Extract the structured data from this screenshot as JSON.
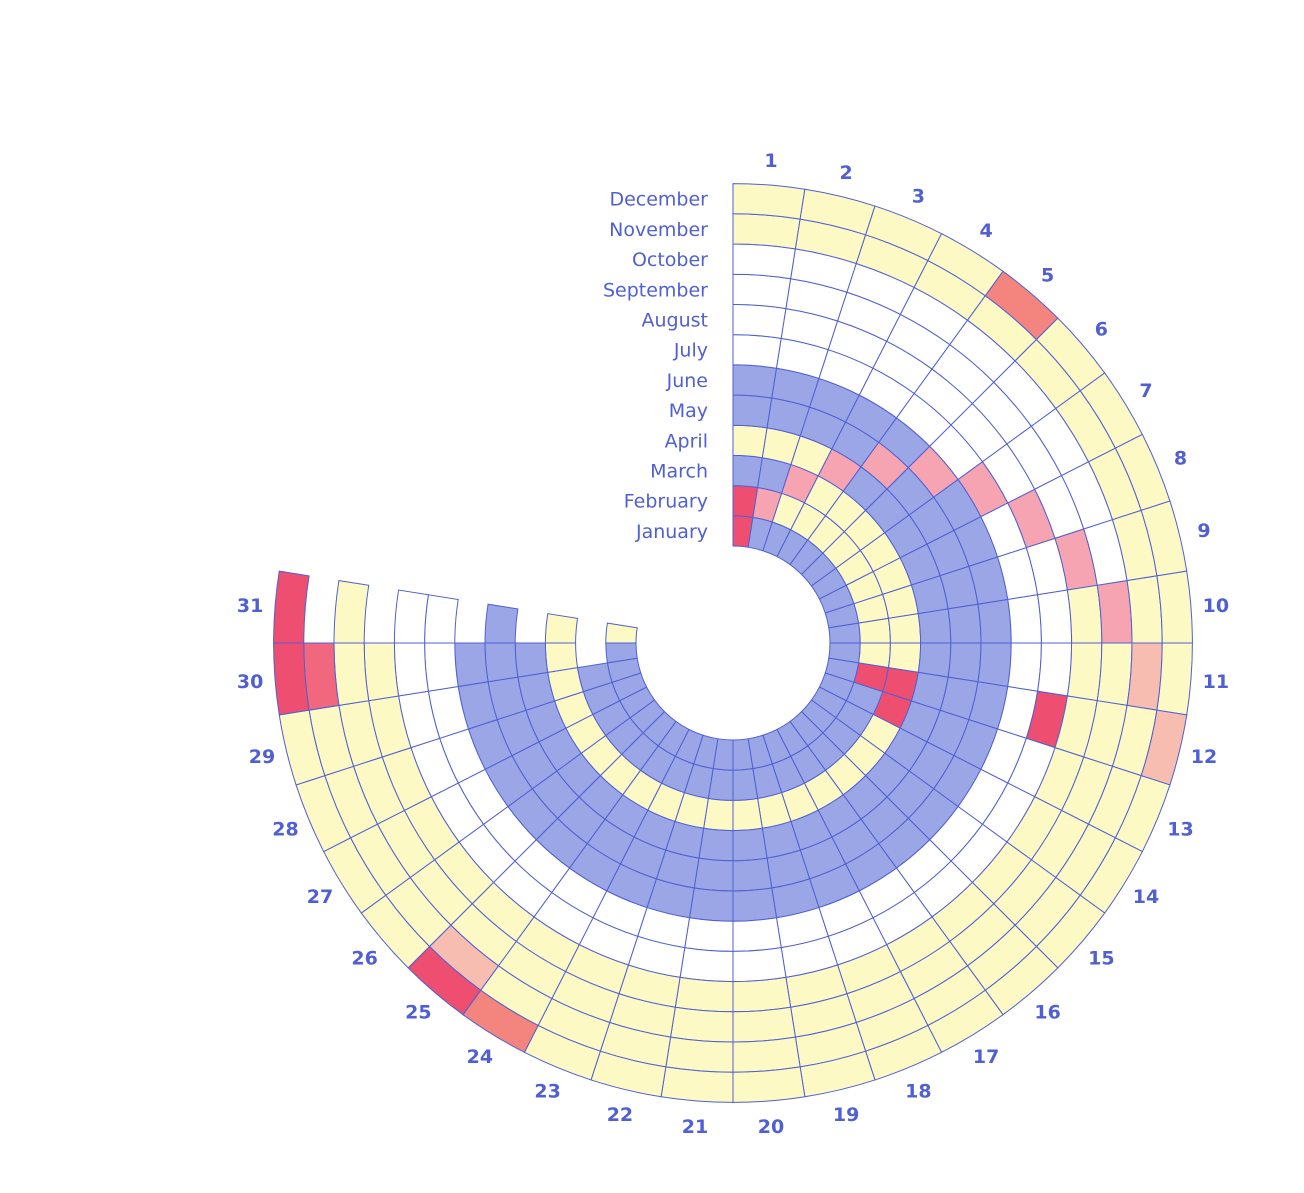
{
  "chart_data": {
    "type": "radial-calendar-heatmap",
    "months": [
      "January",
      "February",
      "March",
      "April",
      "May",
      "June",
      "July",
      "August",
      "September",
      "October",
      "November",
      "December"
    ],
    "days": [
      "1",
      "2",
      "3",
      "4",
      "5",
      "6",
      "7",
      "8",
      "9",
      "10",
      "11",
      "12",
      "13",
      "14",
      "15",
      "16",
      "17",
      "18",
      "19",
      "20",
      "21",
      "22",
      "23",
      "24",
      "25",
      "26",
      "27",
      "28",
      "29",
      "30",
      "31"
    ],
    "days_in_month": [
      31,
      29,
      31,
      30,
      31,
      30,
      31,
      31,
      30,
      31,
      30,
      31
    ],
    "palette": {
      "blue": "#9aa6e6",
      "yellow": "#fcf9c4",
      "none": "#ffffff",
      "pink_light": "#f8bdb1",
      "pink": "#f6a3b2",
      "salmon": "#f4847e",
      "red": "#ee4f70",
      "rose": "#f0677e",
      "stroke": "#5060d2",
      "label": "#5060d2"
    },
    "cells": {
      "January": "red,blue,blue,blue,blue,blue,blue,blue,blue,blue,blue,blue,blue,blue,blue,blue,blue,blue,blue,blue,blue,blue,blue,blue,blue,blue,blue,blue,blue,blue,yellow",
      "February": "red,pink,yellow,yellow,yellow,yellow,yellow,yellow,yellow,yellow,yellow,red,blue,blue,blue,blue,blue,blue,blue,blue,blue,blue,blue,blue,blue,blue,blue,blue,blue",
      "March": "blue,blue,pink,yellow,yellow,yellow,yellow,yellow,yellow,yellow,yellow,red,red,yellow,yellow,yellow,yellow,yellow,yellow,yellow,yellow,yellow,yellow,yellow,yellow,yellow,yellow,yellow,yellow,yellow,yellow",
      "April": "yellow,yellow,yellow,pink,blue,blue,blue,blue,blue,blue,blue,blue,blue,blue,blue,blue,blue,blue,blue,blue,blue,blue,blue,blue,blue,blue,blue,blue,blue,blue",
      "May": "blue,blue,blue,blue,pink,blue,blue,blue,blue,blue,blue,blue,blue,blue,blue,blue,blue,blue,blue,blue,blue,blue,blue,blue,blue,blue,blue,blue,blue,blue,blue",
      "June": "blue,blue,blue,blue,blue,pink,blue,blue,blue,blue,blue,blue,blue,blue,blue,blue,blue,blue,blue,blue,blue,blue,blue,blue,blue,blue,blue,blue,blue,blue",
      "July": "none,none,none,none,none,none,pink,none,none,none,none,none,none,none,none,none,none,none,none,none,none,none,none,none,none,none,none,none,none,none,none",
      "August": "none,none,none,none,none,none,none,pink,none,none,none,red,none,none,none,none,none,none,none,none,none,none,none,none,none,none,none,none,none,none,none",
      "September": "none,none,none,none,none,none,none,none,pink,yellow,yellow,yellow,yellow,yellow,yellow,yellow,yellow,yellow,yellow,yellow,yellow,yellow,yellow,yellow,yellow,yellow,yellow,yellow,yellow,yellow",
      "October": "none,none,none,none,none,none,none,none,none,pink,yellow,yellow,yellow,yellow,yellow,yellow,yellow,yellow,yellow,yellow,yellow,yellow,yellow,yellow,yellow,yellow,yellow,yellow,yellow,yellow,yellow",
      "November": "yellow,yellow,yellow,yellow,yellow,yellow,yellow,yellow,yellow,yellow,pink_light,yellow,yellow,yellow,yellow,yellow,yellow,yellow,yellow,yellow,yellow,yellow,yellow,yellow,pink_light,yellow,yellow,yellow,yellow,rose",
      "December": "yellow,yellow,yellow,yellow,salmon,yellow,yellow,yellow,yellow,yellow,yellow,pink_light,yellow,yellow,yellow,yellow,yellow,yellow,yellow,yellow,yellow,yellow,yellow,salmon,red,yellow,yellow,yellow,yellow,red,red"
    }
  }
}
